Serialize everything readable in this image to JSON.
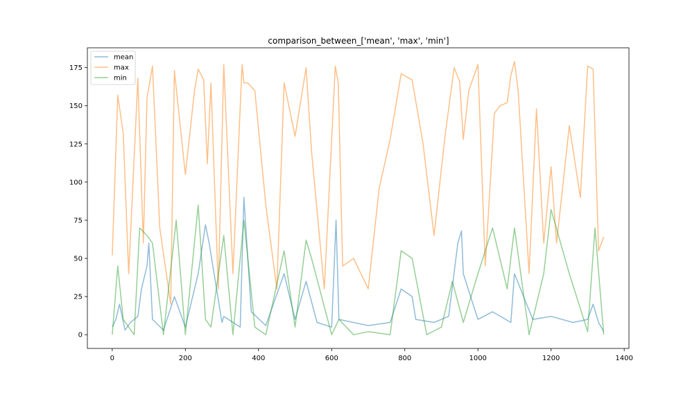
{
  "chart_data": {
    "type": "line",
    "title": "comparison_between_['mean', 'max', 'min']",
    "xlabel": "",
    "ylabel": "",
    "xlim": [
      -68,
      1413
    ],
    "ylim": [
      -9,
      188
    ],
    "xticks": [
      0,
      200,
      400,
      600,
      800,
      1000,
      1200,
      1400
    ],
    "yticks": [
      0,
      25,
      50,
      75,
      100,
      125,
      150,
      175
    ],
    "grid": false,
    "legend_position": "top-left",
    "n_points": 1344,
    "series": [
      {
        "name": "mean",
        "color": "#1f77b4",
        "opacity": 0.5,
        "x": [
          0,
          10,
          20,
          35,
          50,
          70,
          80,
          95,
          100,
          110,
          140,
          170,
          200,
          235,
          255,
          265,
          300,
          305,
          350,
          360,
          380,
          420,
          470,
          500,
          530,
          560,
          600,
          612,
          620,
          700,
          760,
          790,
          820,
          830,
          880,
          920,
          945,
          955,
          960,
          1000,
          1040,
          1090,
          1100,
          1150,
          1200,
          1260,
          1300,
          1315,
          1330,
          1344
        ],
        "y": [
          5,
          10,
          20,
          3,
          8,
          12,
          30,
          45,
          60,
          10,
          3,
          25,
          5,
          40,
          72,
          60,
          8,
          12,
          5,
          90,
          15,
          6,
          40,
          10,
          35,
          8,
          5,
          75,
          10,
          6,
          8,
          30,
          25,
          10,
          8,
          12,
          60,
          68,
          40,
          10,
          15,
          8,
          40,
          10,
          12,
          8,
          10,
          20,
          8,
          2
        ]
      },
      {
        "name": "max",
        "color": "#ff7f0e",
        "opacity": 0.5,
        "x": [
          0,
          15,
          30,
          45,
          70,
          85,
          95,
          110,
          130,
          160,
          170,
          200,
          225,
          235,
          250,
          260,
          270,
          290,
          305,
          330,
          355,
          360,
          370,
          390,
          420,
          450,
          470,
          500,
          530,
          545,
          580,
          610,
          618,
          630,
          660,
          700,
          730,
          760,
          790,
          820,
          850,
          880,
          910,
          935,
          950,
          960,
          975,
          1000,
          1020,
          1045,
          1060,
          1080,
          1090,
          1100,
          1110,
          1140,
          1160,
          1180,
          1200,
          1215,
          1250,
          1280,
          1300,
          1315,
          1330,
          1344
        ],
        "y": [
          52,
          157,
          132,
          40,
          168,
          60,
          155,
          176,
          70,
          20,
          173,
          105,
          160,
          174,
          167,
          112,
          165,
          30,
          177,
          40,
          177,
          165,
          165,
          160,
          85,
          30,
          165,
          130,
          175,
          120,
          30,
          176,
          165,
          45,
          50,
          30,
          96,
          128,
          171,
          167,
          125,
          65,
          130,
          175,
          166,
          128,
          160,
          177,
          45,
          145,
          150,
          152,
          170,
          179,
          160,
          40,
          148,
          60,
          110,
          60,
          137,
          90,
          176,
          174,
          55,
          64
        ]
      },
      {
        "name": "min",
        "color": "#2ca02c",
        "opacity": 0.5,
        "x": [
          0,
          15,
          30,
          60,
          75,
          95,
          110,
          140,
          175,
          200,
          235,
          255,
          270,
          305,
          330,
          360,
          390,
          420,
          470,
          500,
          530,
          545,
          600,
          620,
          660,
          700,
          760,
          790,
          820,
          860,
          900,
          930,
          960,
          1000,
          1040,
          1080,
          1100,
          1140,
          1180,
          1200,
          1250,
          1300,
          1320,
          1344
        ],
        "y": [
          0,
          45,
          10,
          0,
          70,
          65,
          60,
          0,
          75,
          0,
          85,
          10,
          5,
          65,
          0,
          75,
          5,
          0,
          55,
          5,
          62,
          50,
          0,
          10,
          0,
          2,
          0,
          55,
          50,
          0,
          5,
          35,
          8,
          40,
          70,
          30,
          70,
          0,
          40,
          82,
          40,
          2,
          70,
          0
        ]
      }
    ]
  }
}
